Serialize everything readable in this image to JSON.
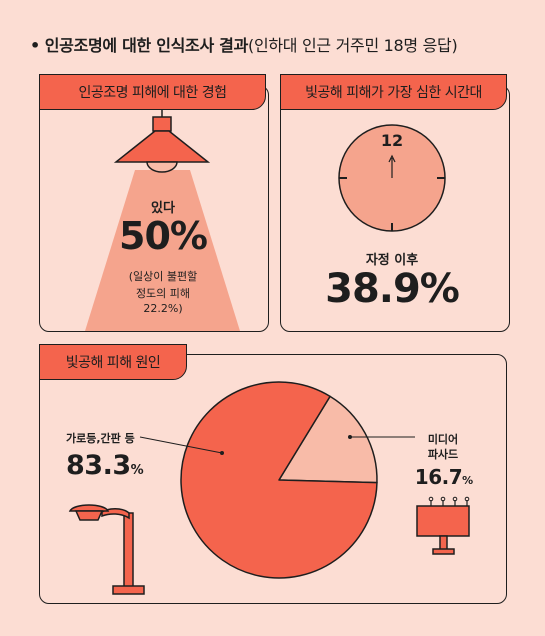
{
  "headline": {
    "bullet": "•",
    "title": "인공조명에 대한 인식조사 결과",
    "subtitle": "(인하대 인근 거주민 18명 응답)"
  },
  "panel_experience": {
    "tag": "인공조명 피해에 대한 경험",
    "label": "있다",
    "value": "50%",
    "note_lines": [
      "(일상이 불편할",
      "정도의 피해",
      "22.2%)"
    ]
  },
  "panel_time": {
    "tag": "빛공해 피해가 가장 심한 시간대",
    "clock_number": "12",
    "label": "자정 이후",
    "value": "38.9%"
  },
  "panel_cause": {
    "tag": "빛공해 피해 원인",
    "left_label": "가로등,간판 등",
    "left_value": "83.3",
    "left_unit": "%",
    "right_label_lines": [
      "미디어",
      "파사드"
    ],
    "right_value": "16.7",
    "right_unit": "%"
  },
  "colors": {
    "background": "#fcddd3",
    "accent": "#f4644d",
    "light": "#f5a48d",
    "pale": "#f8bba8",
    "ink": "#1e1e1e"
  },
  "chart_data": {
    "type": "pie",
    "categories": [
      "가로등,간판 등",
      "미디어 파사드"
    ],
    "values": [
      83.3,
      16.7
    ],
    "colors": [
      "#f4644d",
      "#f8bba8"
    ]
  }
}
